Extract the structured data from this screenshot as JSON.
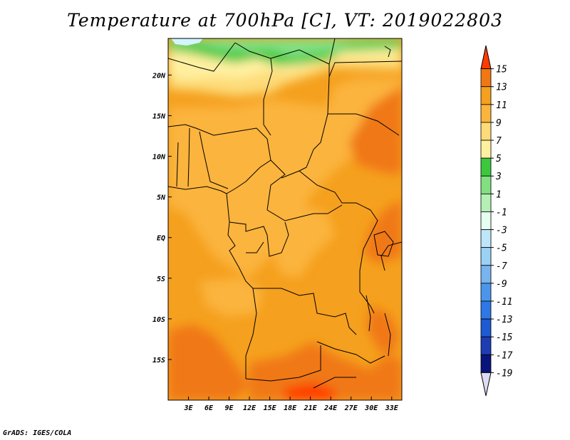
{
  "title": "Temperature at 700hPa [C], VT: 2019022803",
  "credit": "GrADS: IGES/COLA",
  "map": {
    "lon_range": [
      0,
      34.5
    ],
    "lat_range": [
      -20,
      24.5
    ],
    "lon_ticks": [
      {
        "value": 3,
        "label": "3E"
      },
      {
        "value": 6,
        "label": "6E"
      },
      {
        "value": 9,
        "label": "9E"
      },
      {
        "value": 12,
        "label": "12E"
      },
      {
        "value": 15,
        "label": "15E"
      },
      {
        "value": 18,
        "label": "18E"
      },
      {
        "value": 21,
        "label": "21E"
      },
      {
        "value": 24,
        "label": "24E"
      },
      {
        "value": 27,
        "label": "27E"
      },
      {
        "value": 30,
        "label": "30E"
      },
      {
        "value": 33,
        "label": "33E"
      }
    ],
    "lat_ticks": [
      {
        "value": 20,
        "label": "20N"
      },
      {
        "value": 15,
        "label": "15N"
      },
      {
        "value": 10,
        "label": "10N"
      },
      {
        "value": 5,
        "label": "5N"
      },
      {
        "value": 0,
        "label": "EQ"
      },
      {
        "value": -5,
        "label": "5S"
      },
      {
        "value": -10,
        "label": "10S"
      },
      {
        "value": -15,
        "label": "15S"
      }
    ],
    "region_colors": {
      "cold": "#d2f5ff",
      "c1": "#82e082",
      "c3": "#3cc83c",
      "c5": "#fff0a0",
      "c7": "#fddb78",
      "c9": "#fbb43c",
      "c11": "#f5a01e",
      "c13": "#f07814"
    }
  },
  "colorbar": {
    "levels": [
      "15",
      "13",
      "11",
      "9",
      "7",
      "5",
      "3",
      "1",
      "-1",
      "-3",
      "-5",
      "-7",
      "-9",
      "-11",
      "-13",
      "-15",
      "-17",
      "-19"
    ],
    "colors": [
      "#ff3c00",
      "#f07814",
      "#f5a01e",
      "#fbb43c",
      "#fddb78",
      "#fff0a0",
      "#3cc83c",
      "#82e082",
      "#b4f0b4",
      "#e6fff0",
      "#bee6fa",
      "#9ad2f5",
      "#78b4f0",
      "#4b96eb",
      "#2d78e6",
      "#1e5ad2",
      "#1e3cb4",
      "#0a147d",
      "#dcdcf5"
    ]
  }
}
